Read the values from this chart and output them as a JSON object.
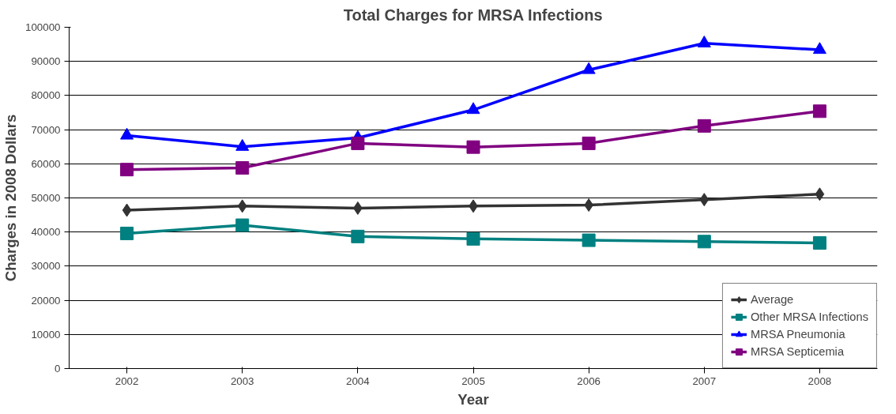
{
  "chart_data": {
    "type": "line",
    "title": "Total Charges for MRSA Infections",
    "xlabel": "Year",
    "ylabel": "Charges in 2008 Dollars",
    "categories": [
      "2002",
      "2003",
      "2004",
      "2005",
      "2006",
      "2007",
      "2008"
    ],
    "series": [
      {
        "name": "Average",
        "color": "#333333",
        "marker": "diamond",
        "values": [
          46400,
          47600,
          47000,
          47600,
          47900,
          49500,
          51100
        ]
      },
      {
        "name": "Other MRSA Infections",
        "color": "#008080",
        "marker": "square",
        "values": [
          39600,
          42000,
          38700,
          38000,
          37600,
          37200,
          36800
        ]
      },
      {
        "name": "MRSA Pneumonia",
        "color": "#0000ff",
        "marker": "triangle",
        "values": [
          68300,
          65000,
          67600,
          75800,
          87500,
          95300,
          93400
        ]
      },
      {
        "name": "MRSA Septicemia",
        "color": "#800080",
        "marker": "square",
        "values": [
          58300,
          58800,
          66000,
          64900,
          66000,
          71100,
          75400
        ]
      }
    ],
    "ylim": [
      0,
      100000
    ],
    "yticks": [
      0,
      10000,
      20000,
      30000,
      40000,
      50000,
      60000,
      70000,
      80000,
      90000,
      100000
    ],
    "grid": "y",
    "legend": "bottom right",
    "line_style": "solid"
  }
}
